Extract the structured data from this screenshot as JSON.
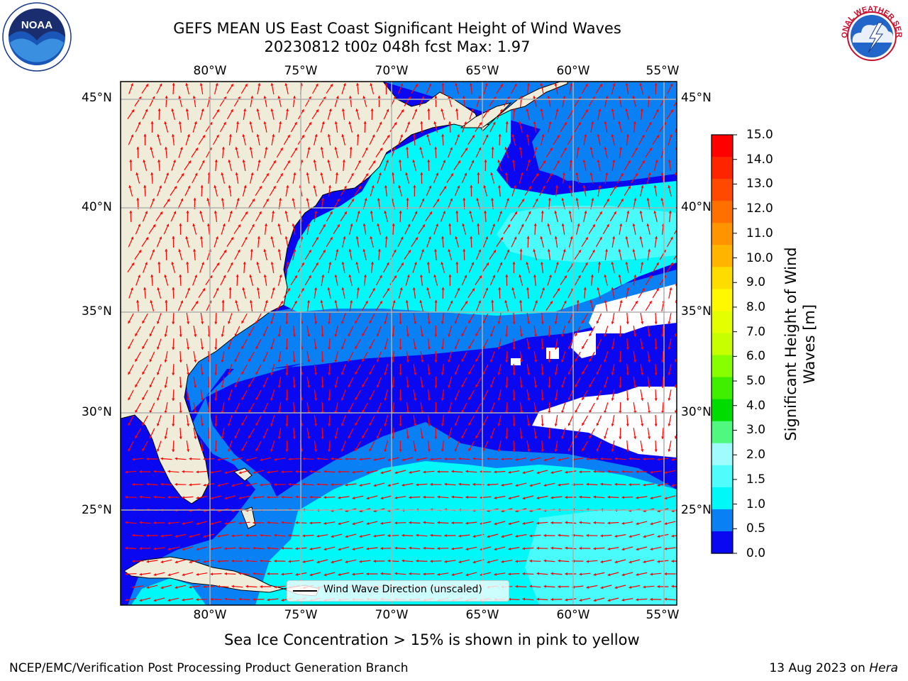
{
  "title": {
    "line1": "GEFS MEAN US East Coast Significant Height of Wind Waves",
    "line2": "20230812 t00z 048h fcst   Max: 1.97"
  },
  "map": {
    "lon_labels": [
      "80°W",
      "75°W",
      "70°W",
      "65°W",
      "60°W",
      "55°W"
    ],
    "lat_labels": [
      "45°N",
      "40°N",
      "35°N",
      "30°N",
      "25°N"
    ],
    "grid": true,
    "legend_label": "Wind Wave Direction (unscaled)",
    "colors": {
      "land": "#efedda",
      "ocean_0": "#0a08f0",
      "ocean_05": "#0a80f5",
      "ocean_10": "#00f8f8",
      "ocean_15": "#49fbfb",
      "ocean_20": "#a4fcfc",
      "arrows": "#ff0000",
      "gridlines": "#b0b0b0"
    }
  },
  "colorbar": {
    "title": "Significant Height of Wind Waves [m]",
    "ticks": [
      "15.0",
      "14.0",
      "13.0",
      "12.0",
      "11.0",
      "10.0",
      "9.0",
      "8.0",
      "7.0",
      "6.0",
      "5.0",
      "4.0",
      "3.0",
      "2.0",
      "1.5",
      "1.0",
      "0.5",
      "0.0"
    ],
    "colors_top_to_bottom": [
      "#ff0000",
      "#ff2400",
      "#ff4800",
      "#ff7000",
      "#ff9400",
      "#ffb400",
      "#ffdc00",
      "#fff800",
      "#e4ff00",
      "#c8ff00",
      "#88ff00",
      "#40ee00",
      "#00dc00",
      "#50f880",
      "#a0fcfc",
      "#50fcfc",
      "#00f8f8",
      "#0a80f5",
      "#0a08f0"
    ]
  },
  "notes": {
    "ice": "Sea Ice Concentration > 15% is shown in pink to yellow",
    "footer_left": "NCEP/EMC/Verification Post Processing Product Generation Branch",
    "footer_date": "13 Aug 2023 on ",
    "footer_machine": "Hera"
  },
  "logos": {
    "left": "NOAA",
    "right": "NATIONAL WEATHER SERVICE",
    "right_icon": "lightning-cloud-icon",
    "left_icon": "noaa-bird-icon"
  }
}
